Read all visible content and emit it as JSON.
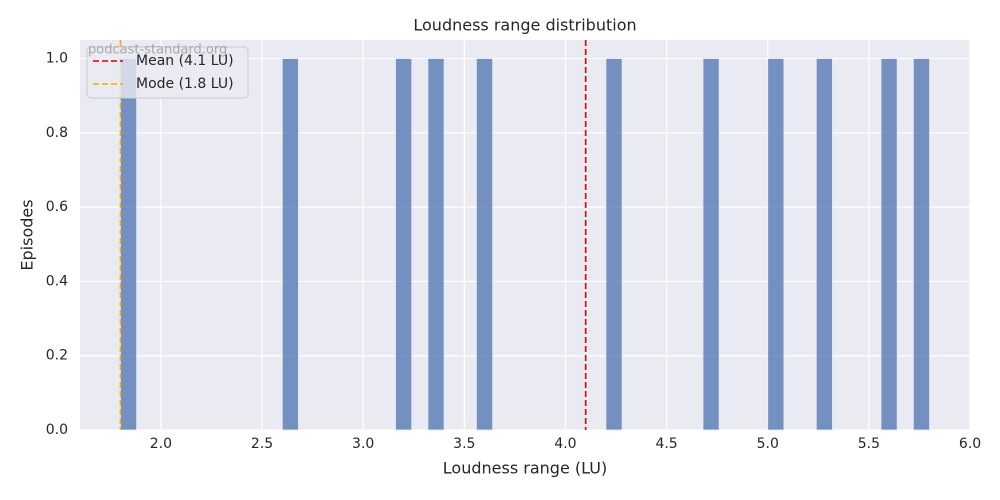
{
  "chart_data": {
    "type": "histogram",
    "title": "Loudness range distribution",
    "x_label": "Loudness range (LU)",
    "y_label": "Episodes",
    "watermark": "podcast-standard.org",
    "bins": [
      1.8,
      1.88,
      1.96,
      2.04,
      2.12,
      2.2,
      2.28,
      2.36,
      2.44,
      2.52,
      2.6,
      2.68,
      2.76,
      2.84,
      2.92,
      3.0,
      3.08,
      3.16,
      3.24,
      3.32,
      3.4,
      3.48,
      3.56,
      3.64,
      3.72,
      3.8,
      3.88,
      3.96,
      4.04,
      4.12,
      4.2,
      4.28,
      4.36,
      4.44,
      4.52,
      4.6,
      4.68,
      4.76,
      4.84,
      4.92,
      5.0,
      5.08,
      5.16,
      5.24,
      5.32,
      5.4,
      5.48,
      5.56,
      5.64,
      5.72,
      5.8
    ],
    "counts": [
      1,
      0,
      0,
      0,
      0,
      0,
      0,
      0,
      0,
      0,
      1,
      0,
      0,
      0,
      0,
      0,
      0,
      1,
      0,
      1,
      0,
      0,
      1,
      0,
      0,
      0,
      0,
      0,
      0,
      0,
      1,
      0,
      0,
      0,
      0,
      0,
      1,
      0,
      0,
      0,
      1,
      0,
      0,
      1,
      0,
      0,
      0,
      1,
      0,
      1
    ],
    "color": "#4c72b0",
    "vlines": [
      {
        "label": "Mean (4.1 LU)",
        "value": 4.1,
        "color": "#e00000"
      },
      {
        "label": "Mode (1.8 LU)",
        "value": 1.8,
        "color": "#ffa500"
      }
    ],
    "xlim": [
      1.6,
      6.0
    ],
    "ylim": [
      0,
      1.05
    ],
    "xticks": [
      {
        "value": 2.0,
        "label": "2.0"
      },
      2.5,
      {
        "value": 3.0,
        "label": "3.0"
      },
      3.5,
      {
        "value": 4.0,
        "label": "4.0"
      },
      4.5,
      {
        "value": 5.0,
        "label": "5.0"
      },
      5.5,
      {
        "value": 6.0,
        "label": "6.0"
      }
    ],
    "yticks": [
      {
        "value": 0,
        "label": "0.0"
      },
      0.2,
      0.4,
      0.6,
      0.8,
      {
        "value": 1,
        "label": "1.0"
      }
    ],
    "grid": true,
    "legend": "upper left"
  }
}
